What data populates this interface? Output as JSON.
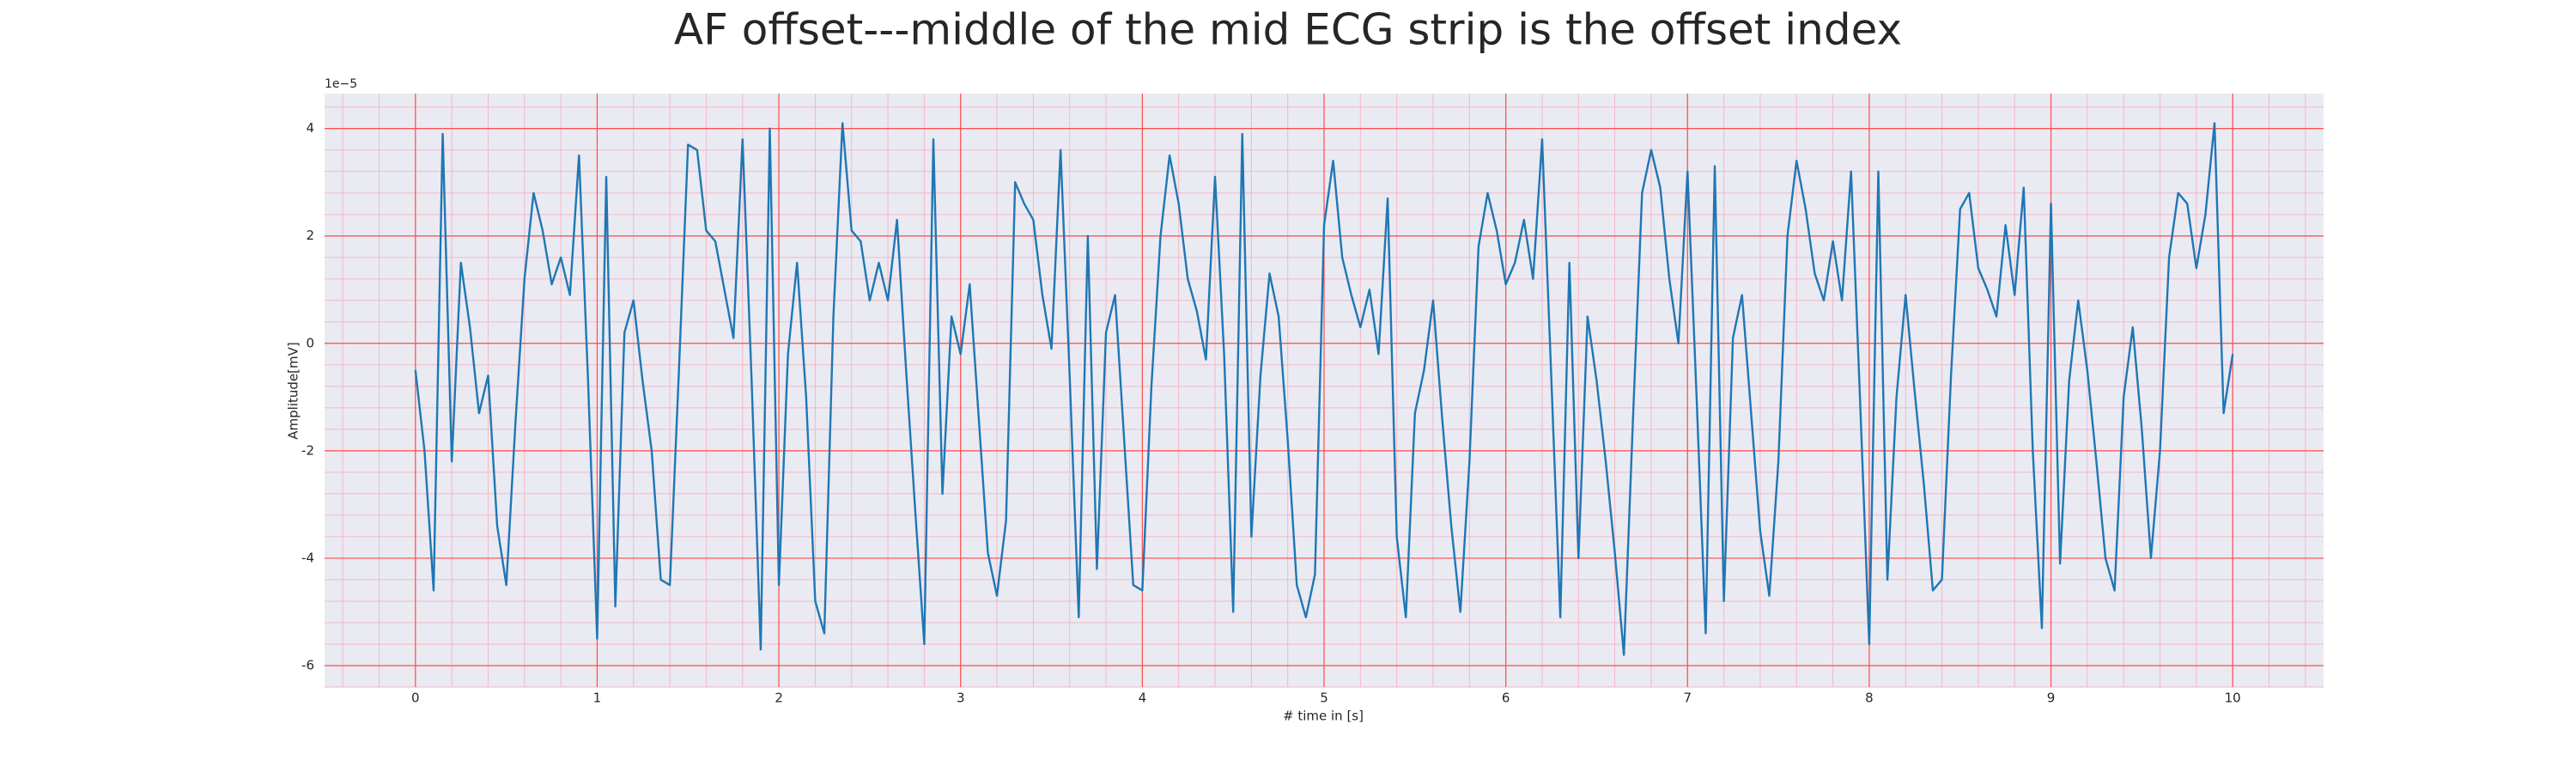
{
  "chart_data": {
    "type": "line",
    "title": "AF offset---middle of the mid ECG strip is the offset index",
    "x_label": "# time in [s]",
    "y_label": "Amplitude[mV]",
    "offset_label": "1e−5",
    "xlim": [
      -0.5,
      10.5
    ],
    "ylim": [
      -6.4,
      4.65
    ],
    "xticks": [
      0,
      1,
      2,
      3,
      4,
      5,
      6,
      7,
      8,
      9,
      10
    ],
    "yticks": [
      -6,
      -4,
      -2,
      0,
      2,
      4
    ],
    "grid": true,
    "minor_grid": true,
    "x": [
      0,
      0.05,
      0.1,
      0.15,
      0.2,
      0.25,
      0.3,
      0.35,
      0.4,
      0.45,
      0.5,
      0.55,
      0.6,
      0.65,
      0.7,
      0.75,
      0.8,
      0.85,
      0.9,
      0.95,
      1,
      1.05,
      1.1,
      1.15,
      1.2,
      1.25,
      1.3,
      1.35,
      1.4,
      1.45,
      1.5,
      1.55,
      1.6,
      1.65,
      1.7,
      1.75,
      1.8,
      1.85,
      1.9,
      1.95,
      2,
      2.05,
      2.1,
      2.15,
      2.2,
      2.25,
      2.3,
      2.35,
      2.4,
      2.45,
      2.5,
      2.55,
      2.6,
      2.65,
      2.7,
      2.75,
      2.8,
      2.85,
      2.9,
      2.95,
      3,
      3.05,
      3.1,
      3.15,
      3.2,
      3.25,
      3.3,
      3.35,
      3.4,
      3.45,
      3.5,
      3.55,
      3.6,
      3.65,
      3.7,
      3.75,
      3.8,
      3.85,
      3.9,
      3.95,
      4,
      4.05,
      4.1,
      4.15,
      4.2,
      4.25,
      4.3,
      4.35,
      4.4,
      4.45,
      4.5,
      4.55,
      4.6,
      4.65,
      4.7,
      4.75,
      4.8,
      4.85,
      4.9,
      4.95,
      5,
      5.05,
      5.1,
      5.15,
      5.2,
      5.25,
      5.3,
      5.35,
      5.4,
      5.45,
      5.5,
      5.55,
      5.6,
      5.65,
      5.7,
      5.75,
      5.8,
      5.85,
      5.9,
      5.95,
      6,
      6.05,
      6.1,
      6.15,
      6.2,
      6.25,
      6.3,
      6.35,
      6.4,
      6.45,
      6.5,
      6.55,
      6.6,
      6.65,
      6.7,
      6.75,
      6.8,
      6.85,
      6.9,
      6.95,
      7,
      7.05,
      7.1,
      7.15,
      7.2,
      7.25,
      7.3,
      7.35,
      7.4,
      7.45,
      7.5,
      7.55,
      7.6,
      7.65,
      7.7,
      7.75,
      7.8,
      7.85,
      7.9,
      7.95,
      8,
      8.05,
      8.1,
      8.15,
      8.2,
      8.25,
      8.3,
      8.35,
      8.4,
      8.45,
      8.5,
      8.55,
      8.6,
      8.65,
      8.7,
      8.75,
      8.8,
      8.85,
      8.9,
      8.95,
      9,
      9.05,
      9.1,
      9.15,
      9.2,
      9.25,
      9.3,
      9.35,
      9.4,
      9.45,
      9.5,
      9.55,
      9.6,
      9.65,
      9.7,
      9.75,
      9.8,
      9.85,
      9.9,
      9.95,
      10
    ],
    "series": [
      {
        "color": "#1f77b4",
        "values": [
          -0.5,
          -2.0,
          -4.6,
          3.9,
          -2.2,
          1.5,
          0.3,
          -1.3,
          -0.6,
          -3.4,
          -4.5,
          -1.5,
          1.2,
          2.8,
          2.1,
          1.1,
          1.6,
          0.9,
          3.5,
          -0.7,
          -5.5,
          3.1,
          -4.9,
          0.2,
          0.8,
          -0.7,
          -2.0,
          -4.4,
          -4.5,
          -0.5,
          3.7,
          3.6,
          2.1,
          1.9,
          1.0,
          0.1,
          3.8,
          -0.7,
          -5.7,
          4.0,
          -4.5,
          -0.2,
          1.5,
          -1.0,
          -4.8,
          -5.4,
          0.5,
          4.1,
          2.1,
          1.9,
          0.8,
          1.5,
          0.8,
          2.3,
          -0.5,
          -3.1,
          -5.6,
          3.8,
          -2.8,
          0.5,
          -0.2,
          1.1,
          -1.4,
          -3.9,
          -4.7,
          -3.3,
          3.0,
          2.6,
          2.3,
          0.9,
          -0.1,
          3.6,
          -0.6,
          -5.1,
          2.0,
          -4.2,
          0.2,
          0.9,
          -1.8,
          -4.5,
          -4.6,
          -0.8,
          2.0,
          3.5,
          2.6,
          1.2,
          0.6,
          -0.3,
          3.1,
          -0.2,
          -5.0,
          3.9,
          -3.6,
          -0.6,
          1.3,
          0.5,
          -1.8,
          -4.5,
          -5.1,
          -4.3,
          2.2,
          3.4,
          1.6,
          0.9,
          0.3,
          1.0,
          -0.2,
          2.7,
          -3.6,
          -5.1,
          -1.3,
          -0.5,
          0.8,
          -1.4,
          -3.4,
          -5.0,
          -2.2,
          1.8,
          2.8,
          2.1,
          1.1,
          1.5,
          2.3,
          1.2,
          3.8,
          -0.6,
          -5.1,
          1.5,
          -4.0,
          0.5,
          -0.7,
          -2.2,
          -3.9,
          -5.8,
          -1.4,
          2.8,
          3.6,
          2.9,
          1.2,
          0.0,
          3.2,
          -1.0,
          -5.4,
          3.3,
          -4.8,
          0.1,
          0.9,
          -1.3,
          -3.5,
          -4.7,
          -2.2,
          2.0,
          3.4,
          2.5,
          1.3,
          0.8,
          1.9,
          0.8,
          3.2,
          -1.1,
          -5.6,
          3.2,
          -4.4,
          -1.0,
          0.9,
          -0.9,
          -2.6,
          -4.6,
          -4.4,
          -0.6,
          2.5,
          2.8,
          1.4,
          1.0,
          0.5,
          2.2,
          0.9,
          2.9,
          -2.0,
          -5.3,
          2.6,
          -4.1,
          -0.7,
          0.8,
          -0.5,
          -2.2,
          -4.0,
          -4.6,
          -1.0,
          0.3,
          -1.6,
          -4.0,
          -2.0,
          1.6,
          2.8,
          2.6,
          1.4,
          2.4,
          4.1,
          -1.3,
          -0.2
        ]
      }
    ]
  }
}
